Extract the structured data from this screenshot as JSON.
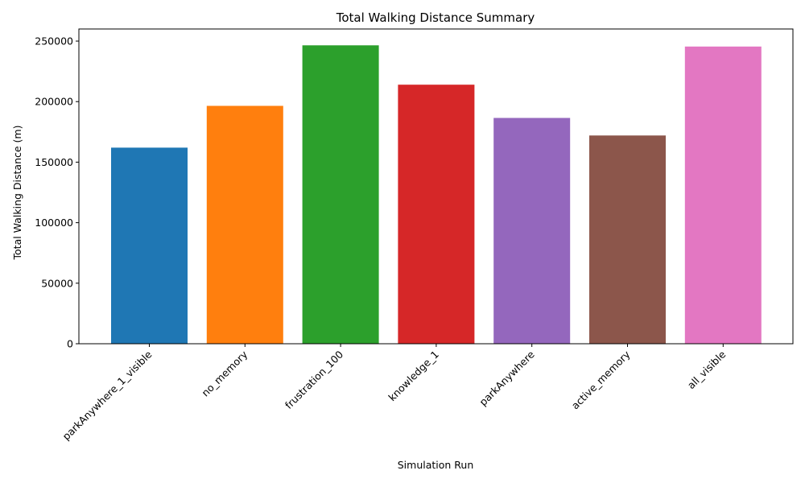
{
  "chart_data": {
    "type": "bar",
    "title": "Total Walking Distance Summary",
    "xlabel": "Simulation Run",
    "ylabel": "Total Walking Distance (m)",
    "categories": [
      "parkAnywhere_1_visible",
      "no_memory",
      "frustration_100",
      "knowledge_1",
      "parkAnywhere",
      "active_memory",
      "all_visible"
    ],
    "values": [
      162000,
      196500,
      246500,
      214000,
      186500,
      172000,
      245500
    ],
    "colors": [
      "#1f77b4",
      "#ff7f0e",
      "#2ca02c",
      "#d62728",
      "#9467bd",
      "#8c564b",
      "#e377c2"
    ],
    "ylim": [
      0,
      260000
    ],
    "yticks": [
      0,
      50000,
      100000,
      150000,
      200000,
      250000
    ],
    "grid": false,
    "legend": "none"
  }
}
